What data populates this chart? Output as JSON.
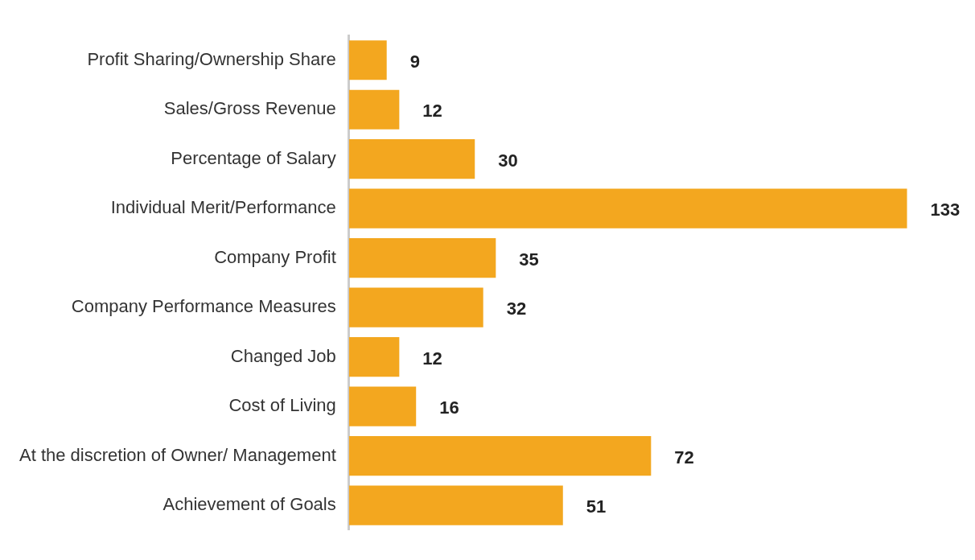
{
  "chart_data": {
    "type": "bar",
    "orientation": "horizontal",
    "categories": [
      "Profit Sharing/Ownership Share",
      "Sales/Gross Revenue",
      "Percentage of Salary",
      "Individual Merit/Performance",
      "Company Profit",
      "Company Performance Measures",
      "Changed Job",
      "Cost of Living",
      "At the discretion of Owner/ Management",
      "Achievement of Goals"
    ],
    "values": [
      9,
      12,
      30,
      133,
      35,
      32,
      12,
      16,
      72,
      51
    ],
    "color": "#f3a71f",
    "data_labels": true,
    "tick_labels": "y",
    "grid": false,
    "legend": false
  }
}
